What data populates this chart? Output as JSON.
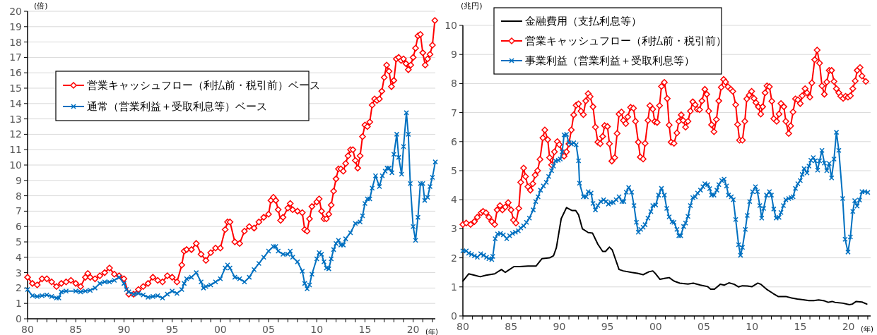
{
  "chart_data": [
    {
      "type": "line",
      "ylabel": "(倍)",
      "xlabel": "(年)",
      "xlim": [
        1980,
        2022.3
      ],
      "ylim": [
        0,
        20
      ],
      "xticks": [
        {
          "value": 1980,
          "label": "80"
        },
        {
          "value": 1981,
          "label": null
        },
        {
          "value": 1982,
          "label": null
        },
        {
          "value": 1983,
          "label": null
        },
        {
          "value": 1984,
          "label": null
        },
        {
          "value": 1985,
          "label": "85"
        },
        {
          "value": 1986,
          "label": null
        },
        {
          "value": 1987,
          "label": null
        },
        {
          "value": 1988,
          "label": null
        },
        {
          "value": 1989,
          "label": null
        },
        {
          "value": 1990,
          "label": "90"
        },
        {
          "value": 1991,
          "label": null
        },
        {
          "value": 1992,
          "label": null
        },
        {
          "value": 1993,
          "label": null
        },
        {
          "value": 1994,
          "label": null
        },
        {
          "value": 1995,
          "label": "95"
        },
        {
          "value": 1996,
          "label": null
        },
        {
          "value": 1997,
          "label": null
        },
        {
          "value": 1998,
          "label": null
        },
        {
          "value": 1999,
          "label": null
        },
        {
          "value": 2000,
          "label": "00"
        },
        {
          "value": 2001,
          "label": null
        },
        {
          "value": 2002,
          "label": null
        },
        {
          "value": 2003,
          "label": null
        },
        {
          "value": 2004,
          "label": null
        },
        {
          "value": 2005,
          "label": "05"
        },
        {
          "value": 2006,
          "label": null
        },
        {
          "value": 2007,
          "label": null
        },
        {
          "value": 2008,
          "label": null
        },
        {
          "value": 2009,
          "label": null
        },
        {
          "value": 2010,
          "label": "10"
        },
        {
          "value": 2011,
          "label": null
        },
        {
          "value": 2012,
          "label": null
        },
        {
          "value": 2013,
          "label": null
        },
        {
          "value": 2014,
          "label": null
        },
        {
          "value": 2015,
          "label": "15"
        },
        {
          "value": 2016,
          "label": null
        },
        {
          "value": 2017,
          "label": null
        },
        {
          "value": 2018,
          "label": null
        },
        {
          "value": 2019,
          "label": null
        },
        {
          "value": 2020,
          "label": "20"
        },
        {
          "value": 2021,
          "label": null
        },
        {
          "value": 2022,
          "label": null
        }
      ],
      "yticks": [
        0,
        1,
        2,
        3,
        4,
        5,
        6,
        7,
        8,
        9,
        10,
        11,
        12,
        13,
        14,
        15,
        16,
        17,
        18,
        19,
        20
      ],
      "grid": "y",
      "legend": "top left",
      "line_style": "solid",
      "series": [
        {
          "name": "営業キャッシュフロー（利払前・税引前）ベース",
          "color": "#ff0000",
          "marker": "diamond",
          "x": [
            1980,
            1980.5,
            1981,
            1981.5,
            1982,
            1982.5,
            1983,
            1983.5,
            1984,
            1984.5,
            1985,
            1985.5,
            1986,
            1986.25,
            1986.5,
            1987,
            1987.5,
            1988,
            1988.5,
            1989,
            1989.5,
            1990,
            1990.5,
            1991,
            1991.5,
            1992,
            1992.5,
            1993,
            1993.5,
            1994,
            1994.5,
            1995,
            1995.5,
            1996,
            1996.25,
            1996.5,
            1997,
            1997.5,
            1998,
            1998.5,
            1999,
            1999.5,
            2000,
            2000.5,
            2000.75,
            2001,
            2001.5,
            2002,
            2002.5,
            2003,
            2003.5,
            2004,
            2004.5,
            2005,
            2005.25,
            2005.5,
            2005.75,
            2006,
            2006.25,
            2006.5,
            2007,
            2007.25,
            2007.5,
            2008,
            2008.5,
            2008.75,
            2009,
            2009.25,
            2009.5,
            2010,
            2010.25,
            2010.5,
            2010.75,
            2011,
            2011.25,
            2011.5,
            2011.75,
            2012,
            2012.25,
            2012.5,
            2012.75,
            2013,
            2013.25,
            2013.5,
            2013.75,
            2014,
            2014.25,
            2014.5,
            2014.75,
            2015,
            2015.25,
            2015.5,
            2015.75,
            2016,
            2016.25,
            2016.5,
            2016.75,
            2017,
            2017.25,
            2017.5,
            2017.75,
            2018,
            2018.25,
            2018.5,
            2018.75,
            2019,
            2019.25,
            2019.5,
            2019.75,
            2020,
            2020.25,
            2020.5,
            2020.75,
            2021,
            2021.25,
            2021.5,
            2021.75,
            2022,
            2022.25
          ],
          "values": [
            2.7,
            2.3,
            2.2,
            2.6,
            2.6,
            2.4,
            2.1,
            2.3,
            2.4,
            2.5,
            2.3,
            2.1,
            2.7,
            2.95,
            2.7,
            2.6,
            2.8,
            3.0,
            3.3,
            2.9,
            2.8,
            2.6,
            1.6,
            1.6,
            1.9,
            2.1,
            2.3,
            2.7,
            2.5,
            2.4,
            2.8,
            2.7,
            2.4,
            3.5,
            4.4,
            4.5,
            4.5,
            4.9,
            4.2,
            3.8,
            4.3,
            4.6,
            4.6,
            5.8,
            6.3,
            6.3,
            5.0,
            4.9,
            5.7,
            6.0,
            5.9,
            6.3,
            6.6,
            6.8,
            7.7,
            7.9,
            7.7,
            7.1,
            6.4,
            6.6,
            7.2,
            7.5,
            7.1,
            7.0,
            6.9,
            5.8,
            5.7,
            6.5,
            7.3,
            7.6,
            7.8,
            7.0,
            6.5,
            6.5,
            6.8,
            7.4,
            8.3,
            9.1,
            9.75,
            9.75,
            9.6,
            10.1,
            10.6,
            11.0,
            11.0,
            10.3,
            9.8,
            10.6,
            11.85,
            12.6,
            12.5,
            12.8,
            13.9,
            14.3,
            14.2,
            14.3,
            14.8,
            15.7,
            16.5,
            16.1,
            15.1,
            15.5,
            16.9,
            17.0,
            16.8,
            16.9,
            16.6,
            16.2,
            16.5,
            17.0,
            17.6,
            18.4,
            18.5,
            17.3,
            16.5,
            16.9,
            17.2,
            17.8,
            19.4
          ]
        },
        {
          "name": "通常（営業利益＋受取利息等）ベース",
          "color": "#0070c0",
          "marker": "cross",
          "x": [
            1980,
            1980.5,
            1981,
            1981.5,
            1982,
            1982.5,
            1983,
            1983.25,
            1983.5,
            1984,
            1985,
            1985.5,
            1986,
            1986.5,
            1987,
            1987.5,
            1988,
            1988.5,
            1989,
            1989.5,
            1990,
            1990.25,
            1990.5,
            1991,
            1991.5,
            1992,
            1992.5,
            1993,
            1993.5,
            1994,
            1994.5,
            1995,
            1995.5,
            1996,
            1996.25,
            1996.5,
            1997,
            1997.5,
            1998,
            1998.25,
            1998.5,
            1999,
            1999.5,
            2000,
            2000.5,
            2000.75,
            2001,
            2001.5,
            2002,
            2002.5,
            2003,
            2003.5,
            2004,
            2004.5,
            2005,
            2005.5,
            2005.75,
            2006,
            2006.5,
            2007,
            2007.25,
            2007.5,
            2008,
            2008.5,
            2008.75,
            2009,
            2009.25,
            2009.5,
            2010,
            2010.25,
            2010.5,
            2010.75,
            2011,
            2011.25,
            2011.5,
            2011.75,
            2012,
            2012.25,
            2012.5,
            2012.75,
            2013,
            2013.5,
            2014,
            2014.5,
            2014.75,
            2015,
            2015.25,
            2015.5,
            2015.75,
            2016.1,
            2016.5,
            2016.8,
            2017.1,
            2017.3,
            2017.5,
            2017.8,
            2018.0,
            2018.3,
            2018.5,
            2018.8,
            2019.0,
            2019.3,
            2019.5,
            2019.7,
            2020.0,
            2020.25,
            2020.5,
            2020.75,
            2021.0,
            2021.2,
            2021.5,
            2021.75,
            2022.0,
            2022.3
          ],
          "values": [
            1.9,
            1.5,
            1.45,
            1.5,
            1.55,
            1.45,
            1.35,
            1.35,
            1.75,
            1.8,
            1.8,
            1.75,
            1.8,
            1.85,
            2.0,
            2.3,
            2.4,
            2.4,
            2.5,
            2.7,
            2.3,
            1.9,
            1.75,
            1.6,
            1.65,
            1.55,
            1.4,
            1.45,
            1.5,
            1.35,
            1.6,
            1.8,
            1.65,
            1.9,
            2.3,
            2.6,
            2.7,
            3.0,
            2.4,
            2.0,
            2.1,
            2.2,
            2.4,
            2.6,
            3.3,
            3.5,
            3.3,
            2.7,
            2.6,
            2.4,
            2.7,
            3.2,
            3.6,
            4.0,
            4.4,
            4.7,
            4.7,
            4.4,
            4.2,
            4.2,
            4.4,
            4.0,
            3.7,
            3.1,
            2.3,
            1.95,
            2.2,
            2.9,
            3.9,
            4.3,
            4.2,
            3.7,
            3.3,
            3.25,
            3.9,
            4.5,
            4.9,
            5.1,
            4.8,
            4.8,
            5.2,
            5.6,
            6.2,
            6.3,
            6.7,
            7.5,
            7.8,
            7.8,
            8.5,
            9.3,
            8.6,
            9.3,
            9.6,
            9.8,
            9.8,
            9.5,
            10.7,
            12.0,
            10.5,
            9.4,
            11.2,
            13.4,
            12.0,
            8.8,
            6.0,
            5.1,
            6.6,
            8.8,
            8.8,
            7.7,
            7.9,
            8.6,
            9.2,
            10.2
          ]
        }
      ]
    },
    {
      "type": "line",
      "ylabel": "(兆円)",
      "xlabel": "(年)",
      "xlim": [
        1980,
        2022.3
      ],
      "ylim": [
        0,
        10
      ],
      "xticks": [
        {
          "value": 1980,
          "label": "80"
        },
        {
          "value": 1981,
          "label": null
        },
        {
          "value": 1982,
          "label": null
        },
        {
          "value": 1983,
          "label": null
        },
        {
          "value": 1984,
          "label": null
        },
        {
          "value": 1985,
          "label": "85"
        },
        {
          "value": 1986,
          "label": null
        },
        {
          "value": 1987,
          "label": null
        },
        {
          "value": 1988,
          "label": null
        },
        {
          "value": 1989,
          "label": null
        },
        {
          "value": 1990,
          "label": "90"
        },
        {
          "value": 1991,
          "label": null
        },
        {
          "value": 1992,
          "label": null
        },
        {
          "value": 1993,
          "label": null
        },
        {
          "value": 1994,
          "label": null
        },
        {
          "value": 1995,
          "label": "95"
        },
        {
          "value": 1996,
          "label": null
        },
        {
          "value": 1997,
          "label": null
        },
        {
          "value": 1998,
          "label": null
        },
        {
          "value": 1999,
          "label": null
        },
        {
          "value": 2000,
          "label": "00"
        },
        {
          "value": 2001,
          "label": null
        },
        {
          "value": 2002,
          "label": null
        },
        {
          "value": 2003,
          "label": null
        },
        {
          "value": 2004,
          "label": null
        },
        {
          "value": 2005,
          "label": "05"
        },
        {
          "value": 2006,
          "label": null
        },
        {
          "value": 2007,
          "label": null
        },
        {
          "value": 2008,
          "label": null
        },
        {
          "value": 2009,
          "label": null
        },
        {
          "value": 2010,
          "label": "10"
        },
        {
          "value": 2011,
          "label": null
        },
        {
          "value": 2012,
          "label": null
        },
        {
          "value": 2013,
          "label": null
        },
        {
          "value": 2014,
          "label": null
        },
        {
          "value": 2015,
          "label": "15"
        },
        {
          "value": 2016,
          "label": null
        },
        {
          "value": 2017,
          "label": null
        },
        {
          "value": 2018,
          "label": null
        },
        {
          "value": 2019,
          "label": null
        },
        {
          "value": 2020,
          "label": "20"
        },
        {
          "value": 2021,
          "label": null
        },
        {
          "value": 2022,
          "label": null
        }
      ],
      "yticks": [
        0,
        1,
        2,
        3,
        4,
        5,
        6,
        7,
        8,
        9,
        10
      ],
      "grid": "y",
      "legend": "top left",
      "line_style": "solid",
      "series": [
        {
          "name": "金融費用（支払利息等）",
          "color": "#000000",
          "marker": "none",
          "x": [
            1980,
            1980.6,
            1981.2,
            1981.8,
            1982.4,
            1983.3,
            1984,
            1984.4,
            1985.3,
            1985.9,
            1986.75,
            1987.6,
            1988.2,
            1989.0,
            1989.4,
            1989.7,
            1990.2,
            1990.75,
            1991.3,
            1991.7,
            1992.0,
            1992.4,
            1993.0,
            1993.45,
            1994.0,
            1994.5,
            1994.8,
            1995.2,
            1995.5,
            1996.2,
            1996.65,
            1997.5,
            1998.1,
            1998.7,
            1999.3,
            1999.7,
            2000.0,
            2000.45,
            2001.0,
            2001.4,
            2001.9,
            2002.5,
            2003.35,
            2003.9,
            2004.65,
            2005.4,
            2005.7,
            2006.1,
            2006.7,
            2007.1,
            2007.6,
            2008.15,
            2008.6,
            2009.0,
            2009.5,
            2010.0,
            2010.6,
            2010.9,
            2011.5,
            2012.2,
            2012.7,
            2013.5,
            2014.1,
            2014.7,
            2015.3,
            2015.9,
            2016.4,
            2016.9,
            2017.5,
            2017.9,
            2018.3,
            2018.6,
            2019.4,
            2020.1,
            2020.4,
            2020.8,
            2021.4,
            2021.9
          ],
          "values": [
            1.2,
            1.45,
            1.4,
            1.35,
            1.4,
            1.45,
            1.6,
            1.5,
            1.7,
            1.7,
            1.72,
            1.72,
            1.97,
            2.0,
            2.07,
            2.35,
            3.35,
            3.73,
            3.63,
            3.63,
            3.48,
            3.0,
            2.87,
            2.85,
            2.47,
            2.22,
            2.22,
            2.37,
            2.27,
            1.6,
            1.55,
            1.5,
            1.47,
            1.42,
            1.52,
            1.55,
            1.45,
            1.26,
            1.3,
            1.32,
            1.2,
            1.13,
            1.1,
            1.13,
            1.06,
            1.01,
            0.92,
            0.92,
            1.09,
            1.06,
            1.14,
            1.09,
            1.0,
            1.04,
            1.03,
            1.01,
            1.13,
            1.09,
            0.92,
            0.77,
            0.67,
            0.67,
            0.62,
            0.58,
            0.56,
            0.53,
            0.53,
            0.55,
            0.52,
            0.47,
            0.5,
            0.47,
            0.44,
            0.39,
            0.41,
            0.5,
            0.48,
            0.41
          ]
        },
        {
          "name": "営業キャッシュフロー（利払前・税引前）",
          "color": "#ff0000",
          "marker": "diamond",
          "x": [
            1980,
            1980.35,
            1980.8,
            1981.2,
            1981.5,
            1981.9,
            1982.1,
            1982.4,
            1982.7,
            1983.0,
            1983.3,
            1983.55,
            1983.85,
            1984.1,
            1984.4,
            1984.7,
            1985.0,
            1985.25,
            1985.5,
            1985.8,
            1986.0,
            1986.3,
            1986.5,
            1986.75,
            1987.0,
            1987.25,
            1987.5,
            1987.75,
            1988.0,
            1988.3,
            1988.5,
            1988.8,
            1989.0,
            1989.2,
            1989.5,
            1989.8,
            1990.0,
            1990.5,
            1990.75,
            1991.0,
            1991.25,
            1991.5,
            1991.75,
            1992.0,
            1992.25,
            1992.5,
            1992.75,
            1993.0,
            1993.2,
            1993.5,
            1993.75,
            1994.0,
            1994.25,
            1994.5,
            1994.7,
            1995.0,
            1995.2,
            1995.45,
            1995.75,
            1996.0,
            1996.2,
            1996.45,
            1996.65,
            1996.9,
            1997.1,
            1997.4,
            1997.7,
            1997.9,
            1998.2,
            1998.4,
            1998.7,
            1998.9,
            1999.2,
            1999.4,
            1999.7,
            1999.9,
            2000.15,
            2000.4,
            2000.6,
            2000.9,
            2001.2,
            2001.4,
            2001.6,
            2001.9,
            2002.2,
            2002.4,
            2002.65,
            2002.85,
            2003.1,
            2003.35,
            2003.6,
            2003.85,
            2004.1,
            2004.3,
            2004.55,
            2004.8,
            2005.1,
            2005.3,
            2005.5,
            2005.8,
            2006.05,
            2006.3,
            2006.55,
            2006.8,
            2007.05,
            2007.25,
            2007.5,
            2007.8,
            2008.0,
            2008.3,
            2008.5,
            2008.7,
            2009.0,
            2009.25,
            2009.45,
            2009.7,
            2009.95,
            2010.2,
            2010.4,
            2010.65,
            2010.9,
            2011.1,
            2011.35,
            2011.55,
            2011.8,
            2012.05,
            2012.25,
            2012.55,
            2012.8,
            2013.0,
            2013.3,
            2013.5,
            2013.8,
            2014.0,
            2014.25,
            2014.5,
            2014.75,
            2015.0,
            2015.2,
            2015.5,
            2015.7,
            2016.0,
            2016.2,
            2016.5,
            2016.75,
            2017.0,
            2017.25,
            2017.5,
            2017.75,
            2018.0,
            2018.25,
            2018.5,
            2018.75,
            2019.0,
            2019.2,
            2019.45,
            2019.7,
            2019.95,
            2020.2,
            2020.45,
            2020.7,
            2020.9,
            2021.2,
            2021.4,
            2021.8
          ],
          "values": [
            3.15,
            3.2,
            3.15,
            3.25,
            3.4,
            3.55,
            3.6,
            3.55,
            3.4,
            3.25,
            3.15,
            3.65,
            3.8,
            3.65,
            3.75,
            3.9,
            3.65,
            3.3,
            3.2,
            3.7,
            4.6,
            5.09,
            4.8,
            4.45,
            4.33,
            4.55,
            4.85,
            5.0,
            5.39,
            6.13,
            6.4,
            6.07,
            5.45,
            5.2,
            5.65,
            6.0,
            5.9,
            5.5,
            5.65,
            5.92,
            6.4,
            6.92,
            7.25,
            7.3,
            7.05,
            6.93,
            7.4,
            7.65,
            7.55,
            7.2,
            6.5,
            5.98,
            5.93,
            6.18,
            6.55,
            6.52,
            5.93,
            5.33,
            5.45,
            6.28,
            6.95,
            7.02,
            6.73,
            6.62,
            6.85,
            7.18,
            7.15,
            6.7,
            5.98,
            5.47,
            5.4,
            5.94,
            6.73,
            7.24,
            7.12,
            6.69,
            6.66,
            7.24,
            7.9,
            8.04,
            7.48,
            6.57,
            5.98,
            5.94,
            6.3,
            6.7,
            6.92,
            6.73,
            6.5,
            6.7,
            7.05,
            7.37,
            7.27,
            7.12,
            7.1,
            7.4,
            7.8,
            7.63,
            7.05,
            6.58,
            6.34,
            6.76,
            7.4,
            7.87,
            8.14,
            8.05,
            7.89,
            7.8,
            7.73,
            7.27,
            6.59,
            6.05,
            6.05,
            6.7,
            7.47,
            7.6,
            7.73,
            7.49,
            7.34,
            7.2,
            6.95,
            7.2,
            7.68,
            7.92,
            7.89,
            7.39,
            6.79,
            6.7,
            6.95,
            7.31,
            7.2,
            6.7,
            6.28,
            6.54,
            7.02,
            7.47,
            7.44,
            7.31,
            7.58,
            7.82,
            7.68,
            7.53,
            8.02,
            8.82,
            9.15,
            8.7,
            7.92,
            7.63,
            8.05,
            8.45,
            8.45,
            8.07,
            7.82,
            7.68,
            7.56,
            7.49,
            7.56,
            7.53,
            7.58,
            7.82,
            8.09,
            8.45,
            8.55,
            8.26,
            8.07
          ]
        },
        {
          "name": "事業利益（営業利益＋受取利息等）",
          "color": "#0070c0",
          "marker": "cross",
          "x": [
            1980,
            1980.35,
            1980.6,
            1980.9,
            1981.2,
            1981.5,
            1981.85,
            1982.15,
            1982.45,
            1982.7,
            1983.0,
            1983.1,
            1983.35,
            1983.6,
            1983.9,
            1984.2,
            1984.55,
            1984.85,
            1985.15,
            1985.45,
            1985.75,
            1986.0,
            1986.3,
            1986.6,
            1986.9,
            1987.3,
            1987.55,
            1987.8,
            1988.05,
            1988.35,
            1988.65,
            1988.9,
            1989.2,
            1989.4,
            1989.6,
            1989.9,
            1990.1,
            1990.3,
            1990.5,
            1990.75,
            1991.0,
            1991.25,
            1991.5,
            1991.75,
            1992.0,
            1992.1,
            1992.5,
            1992.8,
            1993.0,
            1993.3,
            1993.5,
            1993.75,
            1994.0,
            1994.3,
            1994.6,
            1994.85,
            1995.1,
            1995.35,
            1995.6,
            1995.9,
            1996.2,
            1996.5,
            1996.7,
            1996.95,
            1997.2,
            1997.5,
            1997.75,
            1998.0,
            1998.2,
            1998.45,
            1998.7,
            1998.9,
            1999.2,
            1999.5,
            1999.7,
            2000.0,
            2000.3,
            2000.6,
            2000.9,
            2001.15,
            2001.4,
            2001.7,
            2001.9,
            2002.2,
            2002.4,
            2002.6,
            2002.9,
            2003.1,
            2003.35,
            2003.6,
            2003.85,
            2004.1,
            2004.35,
            2004.65,
            2004.9,
            2005.1,
            2005.4,
            2005.6,
            2005.8,
            2006.05,
            2006.35,
            2006.55,
            2006.85,
            2007.1,
            2007.35,
            2007.55,
            2007.85,
            2008.05,
            2008.3,
            2008.6,
            2008.8,
            2009.0,
            2009.3,
            2009.5,
            2009.75,
            2010.05,
            2010.35,
            2010.55,
            2010.8,
            2011.0,
            2011.2,
            2011.5,
            2011.8,
            2012.0,
            2012.25,
            2012.5,
            2012.8,
            2013.0,
            2013.25,
            2013.5,
            2013.8,
            2014.05,
            2014.25,
            2014.5,
            2014.75,
            2015.0,
            2015.2,
            2015.4,
            2015.7,
            2015.9,
            2016.1,
            2016.35,
            2016.55,
            2016.8,
            2017.0,
            2017.25,
            2017.5,
            2017.75,
            2018.0,
            2018.25,
            2018.5,
            2018.75,
            2019.0,
            2019.4,
            2019.65,
            2019.95,
            2020.2,
            2020.45,
            2020.65,
            2020.9,
            2021.15,
            2021.4,
            2021.7,
            2022.0
          ],
          "values": [
            2.24,
            2.24,
            2.16,
            2.12,
            2.07,
            2.02,
            2.14,
            2.09,
            2.02,
            1.97,
            1.94,
            2.05,
            2.66,
            2.82,
            2.84,
            2.79,
            2.66,
            2.76,
            2.84,
            2.88,
            2.93,
            3.03,
            3.1,
            3.22,
            3.37,
            3.65,
            3.94,
            4.1,
            4.33,
            4.47,
            4.6,
            4.8,
            5.0,
            5.16,
            5.34,
            5.36,
            5.4,
            5.65,
            6.23,
            6.25,
            5.96,
            5.92,
            5.96,
            5.89,
            5.34,
            4.57,
            4.1,
            4.1,
            4.28,
            4.23,
            3.87,
            3.65,
            3.8,
            3.94,
            4.0,
            3.94,
            3.85,
            3.9,
            3.91,
            4.0,
            4.1,
            3.94,
            3.94,
            4.26,
            4.42,
            4.26,
            3.8,
            3.22,
            2.88,
            2.98,
            3.05,
            3.14,
            3.37,
            3.59,
            3.8,
            3.82,
            4.16,
            4.39,
            4.16,
            3.7,
            3.41,
            3.24,
            3.22,
            2.98,
            2.76,
            2.76,
            3.08,
            3.2,
            3.43,
            3.8,
            4.07,
            4.1,
            4.23,
            4.33,
            4.45,
            4.55,
            4.52,
            4.38,
            4.16,
            4.16,
            4.33,
            4.52,
            4.66,
            4.71,
            4.47,
            4.16,
            4.1,
            4.0,
            3.32,
            2.45,
            2.09,
            2.36,
            2.98,
            3.46,
            3.94,
            4.28,
            4.45,
            4.28,
            3.8,
            3.37,
            3.7,
            4.16,
            4.28,
            4.16,
            3.68,
            3.37,
            3.39,
            3.56,
            3.8,
            4.0,
            4.04,
            4.07,
            4.1,
            4.39,
            4.55,
            4.66,
            4.87,
            5.07,
            4.92,
            5.16,
            5.36,
            5.45,
            5.34,
            5.02,
            5.34,
            5.7,
            5.26,
            5.0,
            5.25,
            4.75,
            5.4,
            6.32,
            5.7,
            4.04,
            2.64,
            2.2,
            2.72,
            3.6,
            3.97,
            3.78,
            3.99,
            4.28,
            4.28,
            4.25
          ]
        }
      ]
    }
  ]
}
